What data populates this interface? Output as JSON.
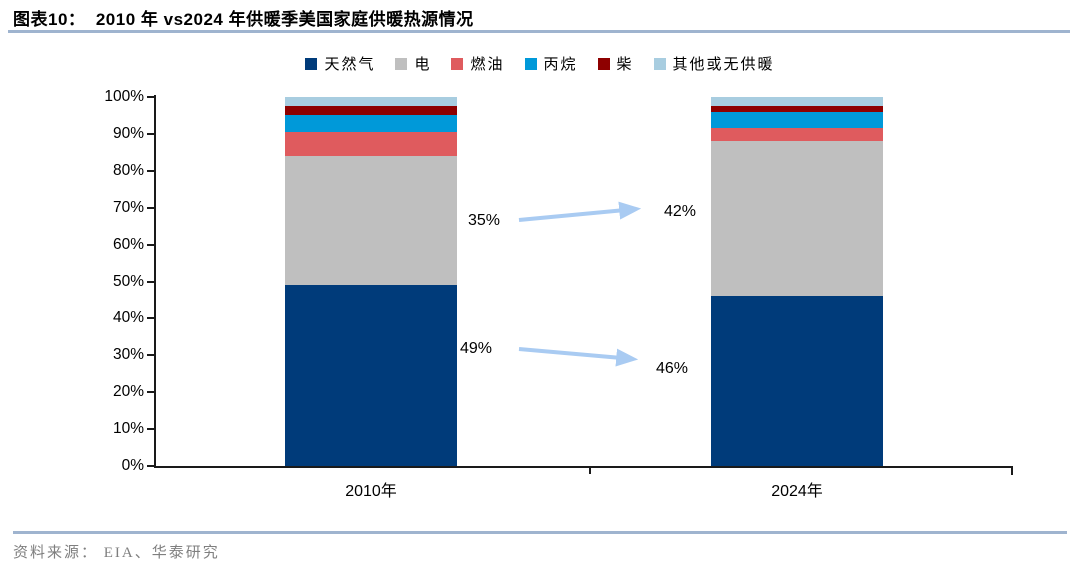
{
  "header": {
    "title": "图表10：  2010 年 vs2024 年供暖季美国家庭供暖热源情况"
  },
  "footer": {
    "source": "资料来源： EIA、华泰研究"
  },
  "colors": {
    "rule_blue_gray": "#9FB4CF",
    "arrow_blue": "#A9CBF2",
    "axis_black": "#1a1a1a"
  },
  "chart_data": {
    "type": "bar",
    "stacked": true,
    "title": "2010 年 vs2024 年供暖季美国家庭供暖热源情况",
    "categories": [
      "2010年",
      "2024年"
    ],
    "series": [
      {
        "name": "天然气",
        "color": "#003B7A",
        "values": [
          49.0,
          46.0
        ]
      },
      {
        "name": "电",
        "color": "#BFBFBF",
        "values": [
          35.0,
          42.0
        ]
      },
      {
        "name": "燃油",
        "color": "#DF5B5E",
        "values": [
          6.5,
          3.5
        ]
      },
      {
        "name": "丙烷",
        "color": "#0099D9",
        "values": [
          4.5,
          4.5
        ]
      },
      {
        "name": "柴",
        "color": "#8E0000",
        "values": [
          2.5,
          1.5
        ]
      },
      {
        "name": "其他或无供暖",
        "color": "#A8CDE0",
        "values": [
          2.5,
          2.5
        ]
      }
    ],
    "ylim": [
      0,
      100
    ],
    "ylabel": "",
    "xlabel": "",
    "grid": false,
    "legend_position": "top",
    "yticks": [
      "0%",
      "10%",
      "20%",
      "30%",
      "40%",
      "50%",
      "60%",
      "70%",
      "80%",
      "90%",
      "100%"
    ],
    "annotations": [
      {
        "series": "电",
        "from_label": "35%",
        "to_label": "42%"
      },
      {
        "series": "天然气",
        "from_label": "49%",
        "to_label": "46%"
      }
    ]
  }
}
